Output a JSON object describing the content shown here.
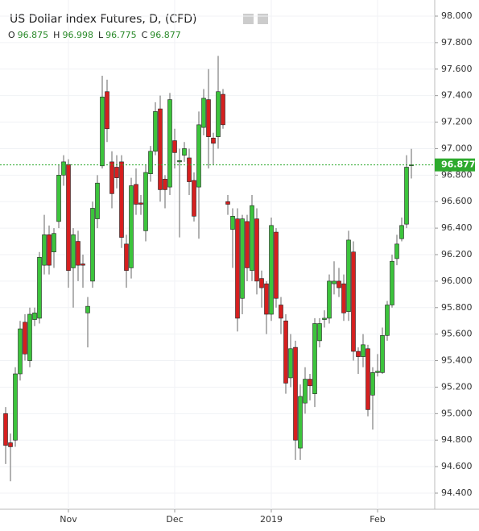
{
  "chart_data": {
    "type": "candlestick",
    "title": "US Dollar Index Futures, D, (CFD)",
    "ohlc_labels": [
      "O",
      "H",
      "L",
      "C"
    ],
    "categories": [
      null,
      null,
      null,
      null,
      null,
      null,
      null,
      null,
      null,
      null,
      null,
      null,
      null,
      "Nov",
      null,
      null,
      null,
      null,
      null,
      null,
      null,
      null,
      null,
      null,
      null,
      null,
      null,
      null,
      null,
      null,
      null,
      null,
      null,
      null,
      null,
      "Dec",
      null,
      null,
      null,
      null,
      null,
      null,
      null,
      null,
      null,
      null,
      null,
      null,
      null,
      null,
      null,
      null,
      null,
      null,
      null,
      "2019",
      null,
      null,
      null,
      null,
      null,
      null,
      null,
      null,
      null,
      null,
      null,
      null,
      null,
      null,
      null,
      null,
      null,
      null,
      null,
      null,
      null,
      "Feb",
      null,
      null,
      null,
      null,
      null,
      null,
      null
    ],
    "open": [
      95.0,
      94.78,
      94.8,
      95.3,
      95.69,
      95.4,
      95.71,
      95.72,
      96.12,
      96.35,
      96.22,
      96.45,
      96.8,
      96.88,
      96.1,
      96.3,
      96.13,
      95.76,
      96.0,
      96.47,
      96.87,
      97.43,
      96.9,
      96.86,
      96.9,
      96.28,
      96.1,
      96.73,
      96.59,
      96.38,
      96.81,
      96.98,
      97.3,
      96.77,
      96.71,
      97.06,
      96.9,
      96.95,
      96.93,
      96.76,
      96.71,
      97.16,
      97.37,
      97.08,
      97.09,
      97.41,
      96.6,
      96.39,
      96.47,
      95.87,
      96.45,
      96.08,
      96.47,
      96.02,
      95.98,
      95.75,
      96.37,
      95.82,
      95.7,
      95.27,
      95.5,
      94.74,
      95.08,
      95.26,
      95.15,
      95.55,
      95.71,
      95.72,
      95.98,
      96.0,
      95.98,
      95.77,
      96.22,
      95.47,
      95.43,
      95.49,
      95.14,
      95.31,
      95.31,
      95.59,
      95.82,
      96.17,
      96.32,
      96.43,
      96.875
    ],
    "high": [
      95.05,
      94.85,
      95.35,
      95.7,
      95.75,
      95.8,
      95.8,
      96.22,
      96.5,
      96.42,
      96.4,
      96.88,
      96.95,
      96.92,
      96.4,
      96.38,
      96.2,
      95.88,
      96.6,
      96.8,
      97.55,
      97.52,
      96.98,
      96.95,
      96.95,
      96.35,
      96.78,
      96.85,
      96.65,
      96.88,
      97.02,
      97.35,
      97.4,
      96.8,
      97.42,
      97.15,
      97.0,
      97.05,
      97.0,
      96.82,
      97.28,
      97.45,
      97.6,
      97.12,
      97.7,
      97.45,
      96.65,
      96.55,
      96.55,
      96.5,
      96.5,
      96.65,
      96.55,
      96.08,
      96.0,
      96.48,
      96.4,
      95.88,
      95.75,
      95.6,
      95.55,
      95.22,
      95.35,
      95.3,
      95.72,
      95.72,
      95.78,
      96.05,
      96.15,
      96.1,
      96.05,
      96.38,
      96.3,
      95.5,
      95.6,
      95.52,
      95.35,
      95.45,
      95.65,
      95.85,
      96.2,
      96.35,
      96.48,
      96.95,
      96.998
    ],
    "low": [
      94.62,
      94.49,
      94.75,
      95.25,
      95.4,
      95.35,
      95.66,
      95.68,
      96.05,
      96.05,
      96.1,
      96.4,
      96.72,
      95.95,
      95.8,
      96.0,
      95.95,
      95.5,
      95.95,
      96.4,
      96.85,
      97.05,
      96.55,
      96.7,
      96.25,
      95.95,
      96.02,
      96.5,
      96.5,
      96.3,
      96.75,
      96.95,
      96.6,
      96.55,
      96.65,
      96.85,
      96.33,
      96.9,
      96.65,
      96.45,
      96.32,
      97.1,
      96.85,
      96.88,
      97.0,
      97.15,
      96.5,
      96.1,
      95.62,
      95.75,
      96.0,
      96.0,
      95.9,
      95.8,
      95.6,
      95.7,
      95.8,
      95.6,
      95.15,
      95.2,
      94.65,
      94.65,
      95.0,
      95.1,
      95.05,
      95.5,
      95.65,
      95.68,
      95.9,
      95.88,
      95.7,
      95.7,
      95.4,
      95.3,
      95.35,
      94.98,
      94.88,
      95.28,
      95.3,
      95.55,
      95.8,
      96.12,
      96.3,
      96.4,
      96.775
    ],
    "close": [
      94.76,
      94.75,
      95.3,
      95.64,
      95.45,
      95.75,
      95.76,
      96.18,
      96.35,
      96.12,
      96.36,
      96.8,
      96.9,
      96.08,
      96.35,
      96.12,
      96.12,
      95.81,
      96.55,
      96.74,
      97.39,
      97.15,
      96.66,
      96.78,
      96.33,
      96.08,
      96.72,
      96.58,
      96.58,
      96.82,
      96.98,
      97.28,
      96.69,
      96.69,
      97.37,
      96.97,
      96.91,
      97.0,
      96.75,
      96.49,
      97.18,
      97.38,
      97.09,
      97.04,
      97.43,
      97.18,
      96.58,
      96.49,
      95.72,
      96.47,
      96.1,
      96.57,
      96.0,
      95.95,
      95.75,
      96.42,
      95.87,
      95.72,
      95.23,
      95.49,
      94.8,
      95.13,
      95.26,
      95.21,
      95.68,
      95.68,
      95.72,
      96.0,
      96.0,
      95.95,
      95.76,
      96.31,
      95.47,
      95.43,
      95.52,
      95.03,
      95.31,
      95.32,
      95.59,
      95.82,
      96.15,
      96.28,
      96.42,
      96.86,
      96.877
    ],
    "up_color": "#3cc43c",
    "down_color": "#d61f1f",
    "border_color": "#222222",
    "ylim": [
      94.2,
      98.1
    ],
    "yticks": [
      {
        "value": 94.4,
        "label": "94.400"
      },
      {
        "value": 94.6,
        "label": "94.600"
      },
      {
        "value": 94.8,
        "label": "94.800"
      },
      {
        "value": 95.0,
        "label": "95.000"
      },
      {
        "value": 95.2,
        "label": "95.200"
      },
      {
        "value": 95.4,
        "label": "95.400"
      },
      {
        "value": 95.6,
        "label": "95.600"
      },
      {
        "value": 95.8,
        "label": "95.800"
      },
      {
        "value": 96.0,
        "label": "96.000"
      },
      {
        "value": 96.2,
        "label": "96.200"
      },
      {
        "value": 96.4,
        "label": "96.400"
      },
      {
        "value": 96.6,
        "label": "96.600"
      },
      {
        "value": 96.8,
        "label": "96.800"
      },
      {
        "value": 97.0,
        "label": "97.000"
      },
      {
        "value": 97.2,
        "label": "97.200"
      },
      {
        "value": 97.4,
        "label": "97.400"
      },
      {
        "value": 97.6,
        "label": "97.600"
      },
      {
        "value": 97.8,
        "label": "97.800"
      },
      {
        "value": 98.0,
        "label": "98.000"
      }
    ],
    "grid": true
  }
}
